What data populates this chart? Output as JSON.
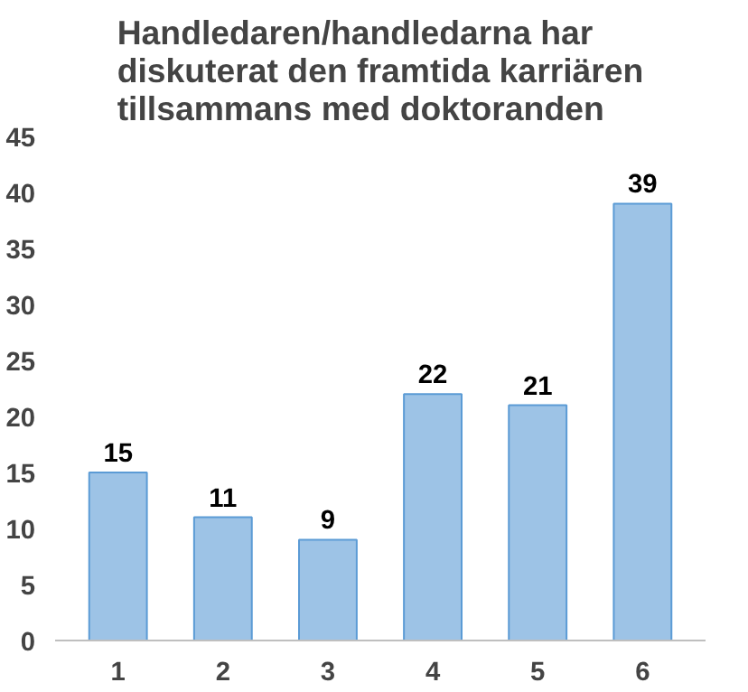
{
  "chart_data": {
    "type": "bar",
    "title": "Handledaren/handledarna har\ndiskuterat den framtida karriären\ntillsammans med doktoranden",
    "categories": [
      "1",
      "2",
      "3",
      "4",
      "5",
      "6"
    ],
    "values": [
      15,
      11,
      9,
      22,
      21,
      39
    ],
    "color": "#9dc3e6",
    "ylim": [
      0,
      45
    ],
    "yticks": [
      0,
      5,
      10,
      15,
      20,
      25,
      30,
      35,
      40,
      45
    ],
    "data_labels": true,
    "grid": false
  }
}
